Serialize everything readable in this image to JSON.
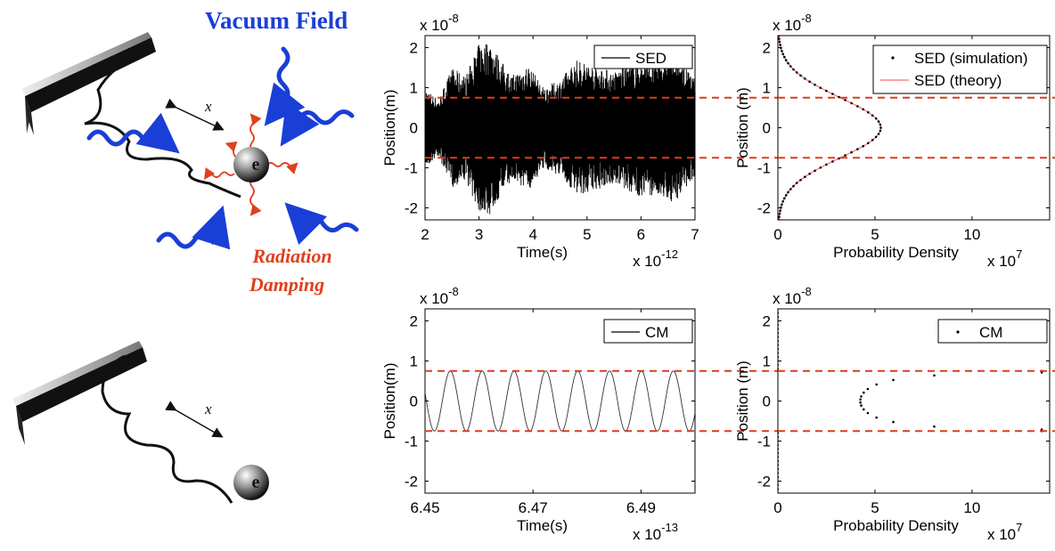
{
  "illustration": {
    "title": "Vacuum Field",
    "damping_line1": "Radiation",
    "damping_line2": "Damping",
    "electron": "e",
    "displacement": "x",
    "colors": {
      "vacuum": "#1a3fd6",
      "damping": "#e0401e",
      "reference": "#e03a1e"
    }
  },
  "chart_data": [
    {
      "id": "sed-time",
      "type": "line",
      "legend": [
        {
          "label": "SED",
          "color": "#000000"
        }
      ],
      "xlabel": "Time(s)",
      "ylabel": "Position(m)",
      "xlim": [
        2e-12,
        7e-12
      ],
      "ylim": [
        -2.3e-08,
        2.3e-08
      ],
      "xticks": [
        2e-12,
        3e-12,
        4e-12,
        5e-12,
        6e-12,
        7e-12
      ],
      "xticklabels": [
        "2",
        "3",
        "4",
        "5",
        "6",
        "7"
      ],
      "yticks": [
        -2e-08,
        -1e-08,
        0,
        1e-08,
        2e-08
      ],
      "yticklabels": [
        "-2",
        "-1",
        "0",
        "1",
        "2"
      ],
      "xexponent": "x 10",
      "xexponent_power": "-12",
      "yexponent": "x 10",
      "yexponent_power": "-8",
      "reference_lines_y": [
        7.5e-09,
        -7.5e-09
      ],
      "series_description": "stochastic oscillation with envelope reaching about ±2.2e-8 m",
      "envelope": {
        "t": [
          2e-12,
          2.25e-12,
          2.5e-12,
          2.75e-12,
          3e-12,
          3.2e-12,
          3.4e-12,
          3.6e-12,
          3.9e-12,
          4.2e-12,
          4.5e-12,
          4.8e-12,
          5.1e-12,
          5.5e-12,
          5.9e-12,
          6.3e-12,
          6.6e-12,
          7e-12
        ],
        "amplitude": [
          1e-08,
          7e-09,
          1.5e-08,
          1.3e-08,
          2.1e-08,
          2.2e-08,
          1.7e-08,
          1.3e-08,
          1.6e-08,
          1e-08,
          1.2e-08,
          1.7e-08,
          1.6e-08,
          1.4e-08,
          1.7e-08,
          1.7e-08,
          1.9e-08,
          1.2e-08
        ]
      }
    },
    {
      "id": "sed-pdf",
      "type": "scatter",
      "legend": [
        {
          "label": "SED (simulation)",
          "color": "#000000",
          "marker": "dot"
        },
        {
          "label": "SED (theory)",
          "color": "#ff6b6b",
          "marker": "line"
        }
      ],
      "xlabel": "Probability Density",
      "ylabel": "Position (m)",
      "xlim": [
        0,
        140000000.0
      ],
      "ylim": [
        -2.3e-08,
        2.3e-08
      ],
      "xticks": [
        0,
        50000000.0,
        100000000.0
      ],
      "xticklabels": [
        "0",
        "5",
        "10"
      ],
      "yticks": [
        -2e-08,
        -1e-08,
        0,
        1e-08,
        2e-08
      ],
      "yticklabels": [
        "-2",
        "-1",
        "0",
        "1",
        "2"
      ],
      "xexponent": "x 10",
      "xexponent_power": "7",
      "yexponent": "x 10",
      "yexponent_power": "-8",
      "reference_lines_y": [
        7.5e-09,
        -7.5e-09
      ],
      "gaussian": {
        "peak": 53000000.0,
        "sigma": 7.5e-09
      }
    },
    {
      "id": "cm-time",
      "type": "line",
      "legend": [
        {
          "label": "CM",
          "color": "#000000"
        }
      ],
      "xlabel": "Time(s)",
      "ylabel": "Position(m)",
      "xlim": [
        6.45e-13,
        6.5e-13
      ],
      "ylim": [
        -2.3e-08,
        2.3e-08
      ],
      "xticks": [
        6.45e-13,
        6.47e-13,
        6.49e-13
      ],
      "xticklabels": [
        "6.45",
        "6.47",
        "6.49"
      ],
      "yticks": [
        -2e-08,
        -1e-08,
        0,
        1e-08,
        2e-08
      ],
      "yticklabels": [
        "-2",
        "-1",
        "0",
        "1",
        "2"
      ],
      "xexponent": "x 10",
      "xexponent_power": "-13",
      "yexponent": "x 10",
      "yexponent_power": "-8",
      "reference_lines_y": [
        7.5e-09,
        -7.5e-09
      ],
      "sine": {
        "amplitude": 7.5e-09,
        "period": 5.9e-16,
        "phase_time": 6.4532e-13
      }
    },
    {
      "id": "cm-pdf",
      "type": "scatter",
      "legend": [
        {
          "label": "CM",
          "color": "#000000",
          "marker": "dot"
        }
      ],
      "xlabel": "Probability Density",
      "ylabel": "Position (m)",
      "xlim": [
        0,
        140000000.0
      ],
      "ylim": [
        -2.3e-08,
        2.3e-08
      ],
      "xticks": [
        0,
        50000000.0,
        100000000.0
      ],
      "xticklabels": [
        "0",
        "5",
        "10"
      ],
      "yticks": [
        -2e-08,
        -1e-08,
        0,
        1e-08,
        2e-08
      ],
      "yticklabels": [
        "-2",
        "-1",
        "0",
        "1",
        "2"
      ],
      "xexponent": "x 10",
      "xexponent_power": "7",
      "yexponent": "x 10",
      "yexponent_power": "-8",
      "reference_lines_y": [
        7.5e-09,
        -7.5e-09
      ],
      "arcsine": {
        "amplitude": 7.5e-09
      },
      "zero_axis_points": true
    }
  ]
}
